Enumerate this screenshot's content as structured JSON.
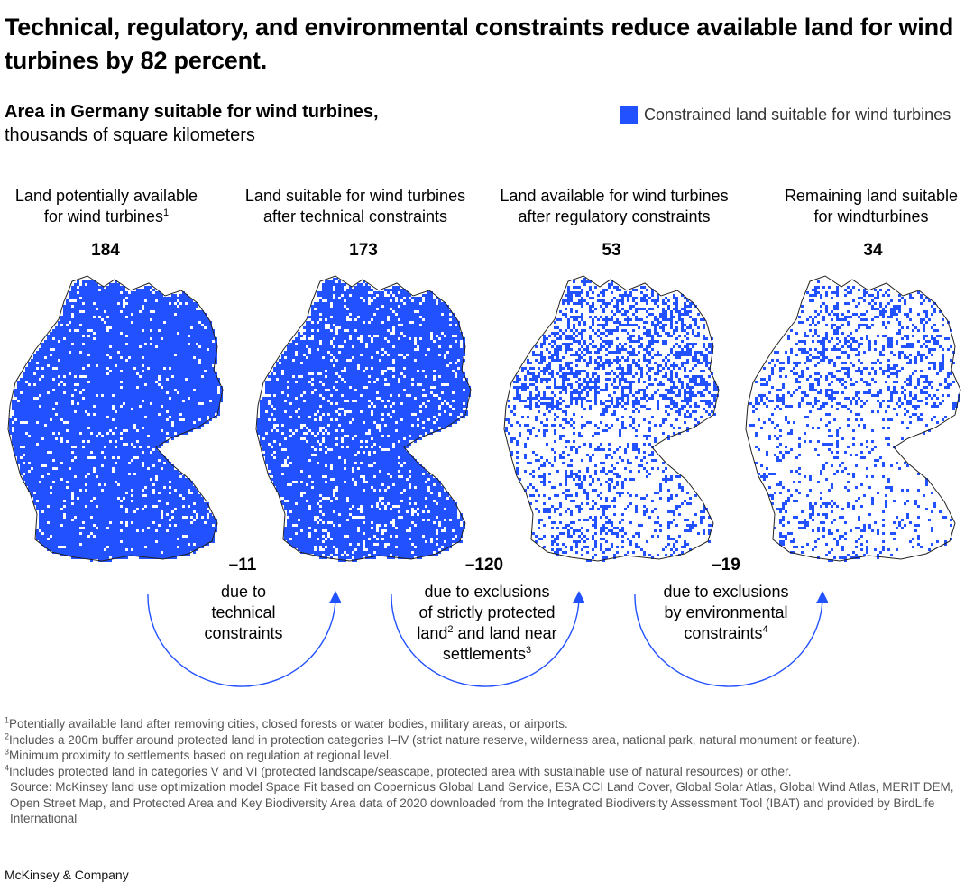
{
  "title": "Technical, regulatory, and environmental constraints reduce available land for wind turbines by 82 percent.",
  "subtitle": {
    "bold": "Area in Germany suitable for wind turbines,",
    "light": "thousands of square kilometers"
  },
  "legend": {
    "label": "Constrained land suitable for wind turbines",
    "color": "#2251ff"
  },
  "chart_data": {
    "type": "waterfall-maps",
    "unit": "thousands of square kilometers",
    "stages": [
      {
        "label_line1": "Land potentially available",
        "label_line2": "for wind turbines",
        "footnote": "1",
        "value": 184,
        "value_text": "184",
        "density": 0.92
      },
      {
        "label_line1": "Land suitable for wind turbines",
        "label_line2": "after technical constraints",
        "footnote": "",
        "value": 173,
        "value_text": "173",
        "density": 0.86
      },
      {
        "label_line1": "Land available for wind turbines",
        "label_line2": "after regulatory constraints",
        "footnote": "",
        "value": 53,
        "value_text": "53",
        "density": 0.3
      },
      {
        "label_line1": "Remaining land suitable",
        "label_line2": "for windturbines",
        "footnote": "",
        "value": 34,
        "value_text": "34",
        "density": 0.2
      }
    ],
    "changes": [
      {
        "value": -11,
        "value_text": "–11",
        "line1": "due to",
        "line2": "technical",
        "line3": "constraints",
        "line4": "",
        "sup3": "",
        "sup4": ""
      },
      {
        "value": -120,
        "value_text": "–120",
        "line1": "due to exclusions",
        "line2": "of strictly protected",
        "line3": "land",
        "line3b": " and land near",
        "line4": "settlements",
        "sup3": "2",
        "sup4": "3"
      },
      {
        "value": -19,
        "value_text": "–19",
        "line1": "due to exclusions",
        "line2": "by environmental",
        "line3": "constraints",
        "line4": "",
        "sup3": "4",
        "sup4": ""
      }
    ],
    "accent_color": "#2251ff",
    "outline_color": "#222222"
  },
  "footnotes": [
    {
      "mark": "1",
      "text": "Potentially available land after removing cities, closed forests or water bodies, military areas, or airports."
    },
    {
      "mark": "2",
      "text": "Includes a 200m buffer around protected land in protection categories I–IV (strict nature reserve, wilderness area, national park, natural monument or feature)."
    },
    {
      "mark": "3",
      "text": "Minimum proximity to settlements based on regulation at regional level."
    },
    {
      "mark": "4",
      "text": "Includes protected land in categories V and VI (protected landscape/seascape, protected area with sustainable use of natural resources) or other."
    }
  ],
  "source": "Source: McKinsey land use optimization model Space Fit based on Copernicus Global Land Service, ESA CCI Land Cover, Global Solar Atlas, Global Wind Atlas, MERIT DEM, Open Street Map, and Protected Area and Key Biodiversity Area data of 2020 downloaded from the Integrated Biodiversity Assessment Tool (IBAT) and provided by BirdLife International",
  "brand": "McKinsey & Company"
}
